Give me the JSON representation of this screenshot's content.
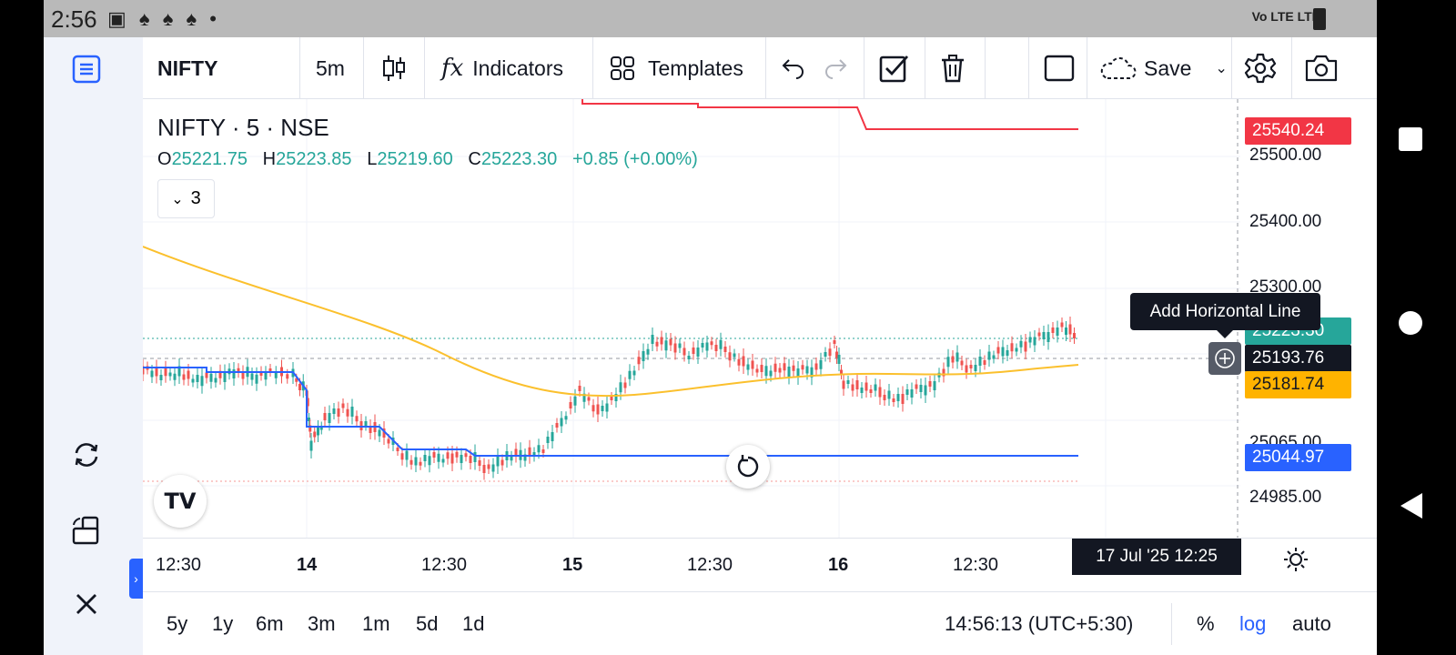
{
  "statusbar": {
    "time": "2:56",
    "notifs": "▣ ♠ ♠ ♠ •",
    "network": "Vo LTE   LTE"
  },
  "toolbar": {
    "symbol": "NIFTY",
    "interval": "5m",
    "indicators_label": "Indicators",
    "templates_label": "Templates",
    "save_label": "Save"
  },
  "legend": {
    "title": "NIFTY · 5 · NSE",
    "o_label": "O",
    "o": "25221.75",
    "h_label": "H",
    "h": "25223.85",
    "l_label": "L",
    "l": "25219.60",
    "c_label": "C",
    "c": "25223.30",
    "change": "+0.85 (+0.00%)",
    "collapse_count": "3"
  },
  "price_axis": {
    "labels": [
      "25500.00",
      "25400.00",
      "25300.00",
      "25065.00",
      "24985.00"
    ],
    "tags": [
      {
        "value": "25540.24",
        "color": "#f23645"
      },
      {
        "value": "25223.30",
        "color": "#26a69a"
      },
      {
        "value": "25193.76",
        "color": "#131722"
      },
      {
        "value": "25181.74",
        "color": "#ffb300"
      },
      {
        "value": "25044.97",
        "color": "#2962ff"
      }
    ]
  },
  "tooltip": "Add Horizontal Line",
  "time_axis": {
    "labels": [
      "12:30",
      "14",
      "12:30",
      "15",
      "12:30",
      "16",
      "12:30"
    ],
    "crosshair": "17 Jul '25   12:25"
  },
  "bottombar": {
    "ranges": [
      "5y",
      "1y",
      "6m",
      "3m",
      "1m",
      "5d",
      "1d"
    ],
    "clock": "14:56:13 (UTC+5:30)",
    "percent": "%",
    "log": "log",
    "auto": "auto"
  },
  "colors": {
    "up": "#26a69a",
    "down": "#ef5350",
    "accent": "#2962ff",
    "ma": "#fbc02d",
    "stop": "#2962ff",
    "upper": "#f23645"
  }
}
